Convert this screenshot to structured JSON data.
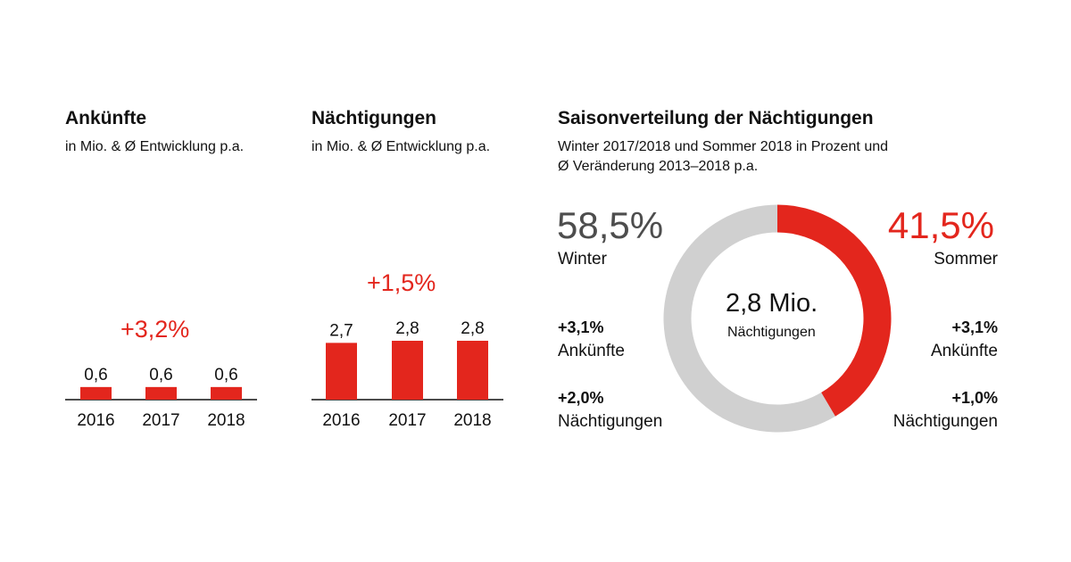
{
  "colors": {
    "accent": "#e3261d",
    "winter": "#d0d0d0",
    "text": "#111111",
    "winter_text": "#4d4d4d"
  },
  "chart_data": [
    {
      "type": "bar",
      "title": "Ankünfte",
      "subtitle": "in Mio. & Ø Entwicklung p.a.",
      "categories": [
        "2016",
        "2017",
        "2018"
      ],
      "values": [
        0.6,
        0.6,
        0.6
      ],
      "value_labels": [
        "0,6",
        "0,6",
        "0,6"
      ],
      "growth_label": "+3,2%",
      "xlabel": "",
      "ylabel": "",
      "ylim": [
        0,
        3.8
      ],
      "grid": false
    },
    {
      "type": "bar",
      "title": "Nächtigungen",
      "subtitle": "in Mio. & Ø Entwicklung p.a.",
      "categories": [
        "2016",
        "2017",
        "2018"
      ],
      "values": [
        2.7,
        2.8,
        2.8
      ],
      "value_labels": [
        "2,7",
        "2,8",
        "2,8"
      ],
      "growth_label": "+1,5%",
      "xlabel": "",
      "ylabel": "",
      "ylim": [
        0,
        3.8
      ],
      "grid": false
    },
    {
      "type": "pie",
      "title": "Saisonverteilung der Nächtigungen",
      "subtitle_lines": [
        "Winter 2017/2018 und Sommer 2018 in Prozent und",
        "Ø Veränderung 2013–2018 p.a."
      ],
      "center_value": "2,8 Mio.",
      "center_label": "Nächtigungen",
      "slices": [
        {
          "name": "Sommer",
          "value": 41.5,
          "label": "41,5%",
          "stats": [
            {
              "value": "+3,1%",
              "label": "Ankünfte"
            },
            {
              "value": "+1,0%",
              "label": "Nächtigungen"
            }
          ]
        },
        {
          "name": "Winter",
          "value": 58.5,
          "label": "58,5%",
          "stats": [
            {
              "value": "+3,1%",
              "label": "Ankünfte"
            },
            {
              "value": "+2,0%",
              "label": "Nächtigungen"
            }
          ]
        }
      ]
    }
  ]
}
